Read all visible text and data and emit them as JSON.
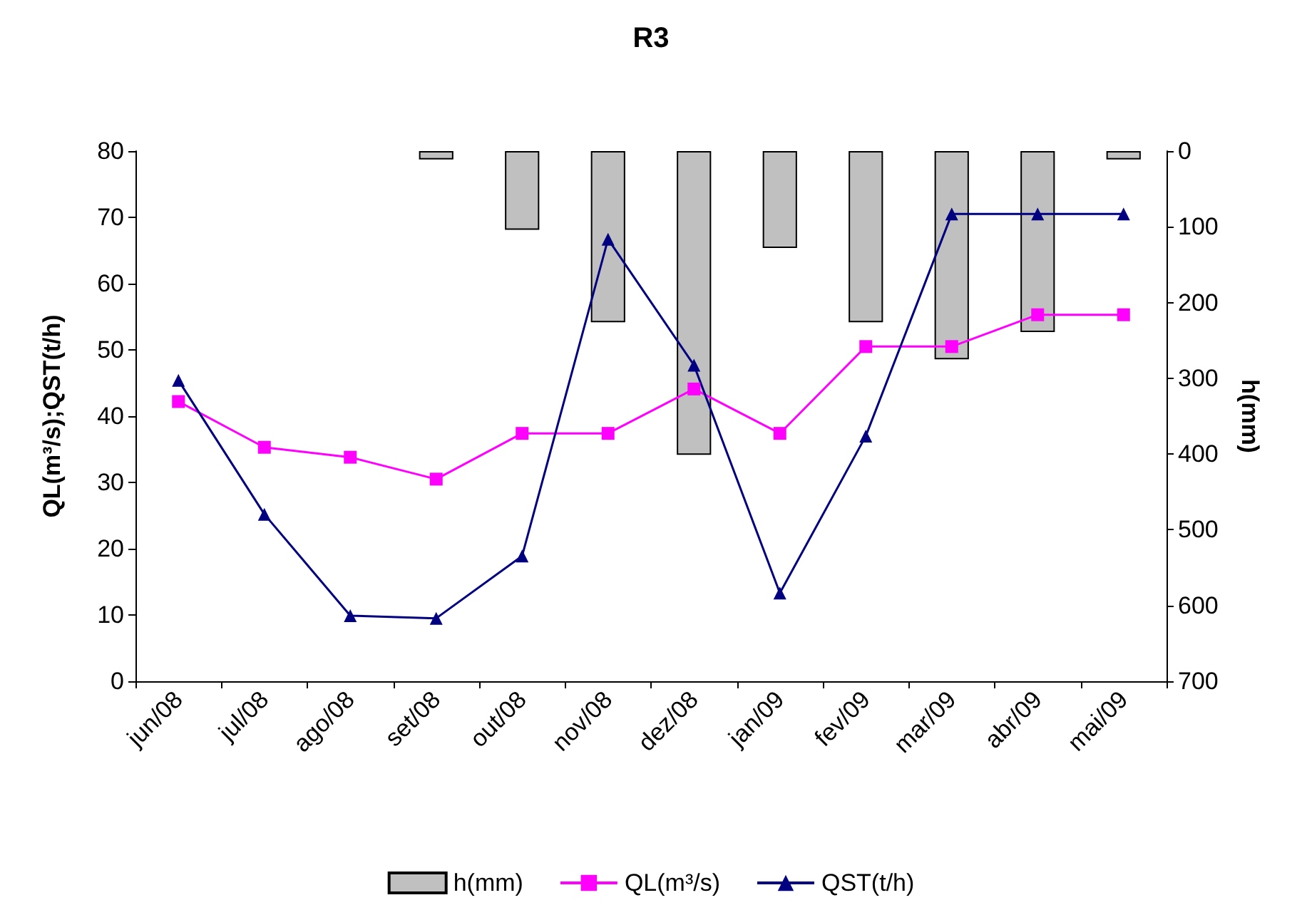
{
  "chart_data": {
    "type": "line",
    "title": "R3",
    "ylabel": "QL(m³/s);QST(t/h)",
    "y2label": "h(mm)",
    "categories": [
      "jun/08",
      "jul/08",
      "ago/08",
      "set/08",
      "out/08",
      "nov/08",
      "dez/08",
      "jan/09",
      "fev/09",
      "mar/09",
      "abr/09",
      "mai/09"
    ],
    "series": [
      {
        "name": "h(mm)",
        "type": "bar",
        "axis": "y2",
        "color": "#c0c0c0",
        "values": [
          0,
          0,
          0,
          11,
          104,
          226,
          401,
          128,
          226,
          275,
          239,
          11
        ]
      },
      {
        "name": "QL(m³/s)",
        "color": "#ff00ff",
        "marker": "square",
        "values": [
          42.2,
          35.3,
          33.8,
          30.5,
          37.4,
          37.4,
          44.1,
          37.4,
          50.5,
          50.5,
          55.3,
          55.3
        ]
      },
      {
        "name": "QST(t/h)",
        "color": "#000080",
        "marker": "triangle",
        "values": [
          45.4,
          25.2,
          9.9,
          9.5,
          18.9,
          66.7,
          47.7,
          13.3,
          37.0,
          70.5,
          70.5,
          70.5
        ]
      }
    ],
    "ylim": [
      0,
      80
    ],
    "yticks": [
      0,
      10,
      20,
      30,
      40,
      50,
      60,
      70,
      80
    ],
    "y2lim": [
      700,
      0
    ],
    "y2ticks": [
      0,
      100,
      200,
      300,
      400,
      500,
      600,
      700
    ],
    "grid": false,
    "legend": "bottom"
  }
}
